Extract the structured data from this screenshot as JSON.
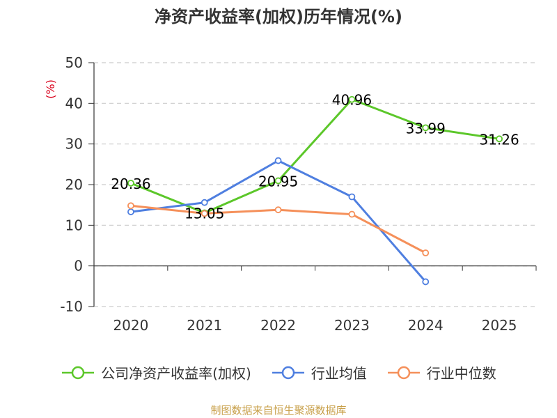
{
  "chart_data": {
    "type": "line",
    "title": "净资产收益率(加权)历年情况(%)",
    "ylabel": "(%)",
    "xlabel": "",
    "categories": [
      "2020",
      "2021",
      "2022",
      "2023",
      "2024",
      "2025"
    ],
    "ylim": [
      -10,
      50
    ],
    "yticks": [
      -10,
      0,
      10,
      20,
      30,
      40,
      50
    ],
    "grid": true,
    "legend_position": "bottom",
    "series": [
      {
        "name": "公司净资产收益率(加权)",
        "color": "#5cc72a",
        "values": [
          20.36,
          13.05,
          20.95,
          40.96,
          33.99,
          31.26
        ],
        "labels": [
          "20.36",
          "13.05",
          "20.95",
          "40.96",
          "33.99",
          "31.26"
        ]
      },
      {
        "name": "行业均值",
        "color": "#4f7fe0",
        "values": [
          13.3,
          15.6,
          25.9,
          17.0,
          -3.9,
          null
        ]
      },
      {
        "name": "行业中位数",
        "color": "#f5905a",
        "values": [
          14.8,
          12.9,
          13.8,
          12.7,
          3.2,
          null
        ]
      }
    ],
    "source": "制图数据来自恒生聚源数据库"
  }
}
